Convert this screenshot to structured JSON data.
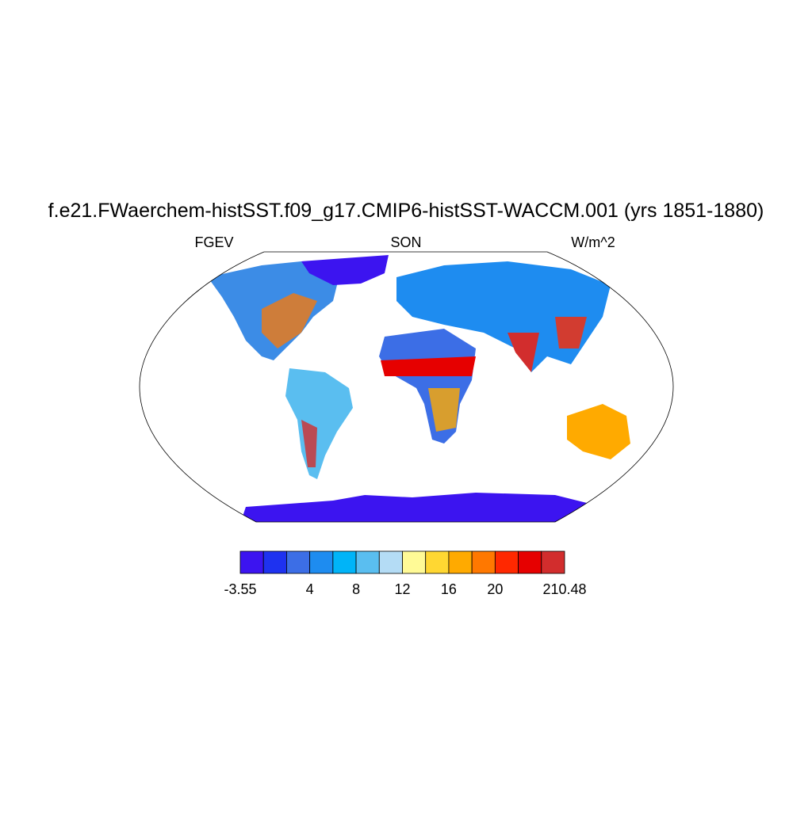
{
  "title": "f.e21.FWaerchem-histSST.f09_g17.CMIP6-histSST-WACCM.001 (yrs 1851-1880)",
  "left_string": "FGEV",
  "center_string": "SON",
  "right_string": "W/m^2",
  "colorbar": {
    "colors": [
      "#3c14f0",
      "#1e32f0",
      "#3c6ee6",
      "#1e8cf0",
      "#00b4f8",
      "#5abef0",
      "#b4dcf5",
      "#fffa96",
      "#ffd732",
      "#ffaa00",
      "#ff7800",
      "#ff2800",
      "#e60000",
      "#d22d2d"
    ],
    "labels": [
      -3.55,
      4,
      8,
      12,
      16,
      20,
      210.48
    ]
  }
}
